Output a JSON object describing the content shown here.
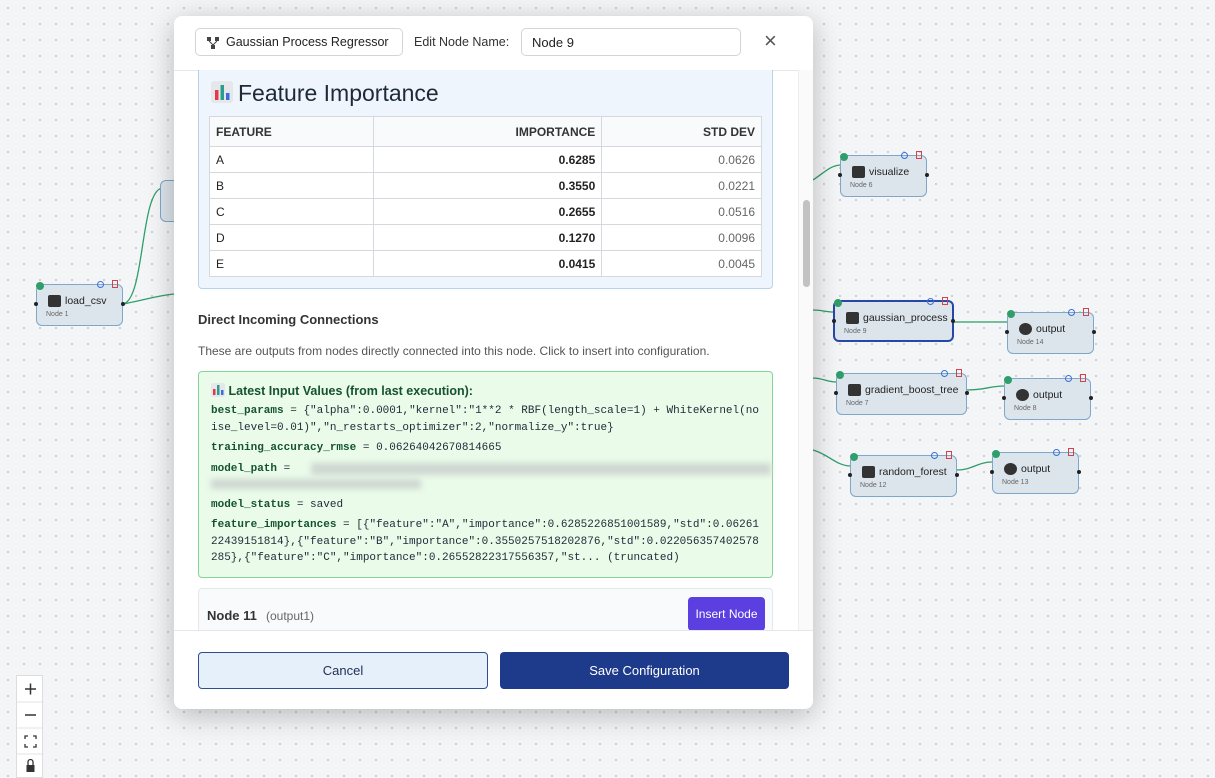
{
  "modal": {
    "node_type": "Gaussian Process Regressor",
    "name_label": "Edit Node Name:",
    "name_value": "Node 9",
    "close": "×"
  },
  "feature_importance": {
    "title": "Feature Importance",
    "columns": [
      "FEATURE",
      "IMPORTANCE",
      "STD DEV"
    ],
    "rows": [
      [
        "A",
        "0.6285",
        "0.0626"
      ],
      [
        "B",
        "0.3550",
        "0.0221"
      ],
      [
        "C",
        "0.2655",
        "0.0516"
      ],
      [
        "D",
        "0.1270",
        "0.0096"
      ],
      [
        "E",
        "0.0415",
        "0.0045"
      ]
    ]
  },
  "connections": {
    "title": "Direct Incoming Connections",
    "description": "These are outputs from nodes directly connected into this node. Click to insert into configuration.",
    "latest": {
      "title": "Latest Input Values (from last execution):",
      "assign": "=",
      "items": [
        {
          "key": "best_params",
          "value": "{\"alpha\":0.0001,\"kernel\":\"1**2 * RBF(length_scale=1) + WhiteKernel(noise_level=0.01)\",\"n_restarts_optimizer\":2,\"normalize_y\":true}"
        },
        {
          "key": "training_accuracy_rmse",
          "value": "0.06264042670814665"
        },
        {
          "key": "model_path"
        },
        {
          "key": "model_status",
          "value": "saved"
        },
        {
          "key": "feature_importances",
          "value": "[{\"feature\":\"A\",\"importance\":0.6285226851001589,\"std\":0.0626122439151814},{\"feature\":\"B\",\"importance\":0.3550257518202876,\"std\":0.022056357402578285},{\"feature\":\"C\",\"importance\":0.26552822317556357,\"st... (truncated)"
        }
      ]
    }
  },
  "incoming_node": {
    "name": "Node 11",
    "port": "(output1)",
    "button": "Insert Node"
  },
  "footer": {
    "cancel": "Cancel",
    "save": "Save Configuration"
  },
  "canvas_nodes": [
    {
      "label": "load_csv",
      "id": "Node 1"
    },
    {
      "label": "visualize",
      "id": "Node 6"
    },
    {
      "label": "gaussian_process",
      "id": "Node 9"
    },
    {
      "label": "output",
      "id": "Node 14"
    },
    {
      "label": "gradient_boost_tree",
      "id": "Node 7"
    },
    {
      "label": "output",
      "id": "Node 8"
    },
    {
      "label": "random_forest",
      "id": "Node 12"
    },
    {
      "label": "output",
      "id": "Node 13"
    }
  ]
}
